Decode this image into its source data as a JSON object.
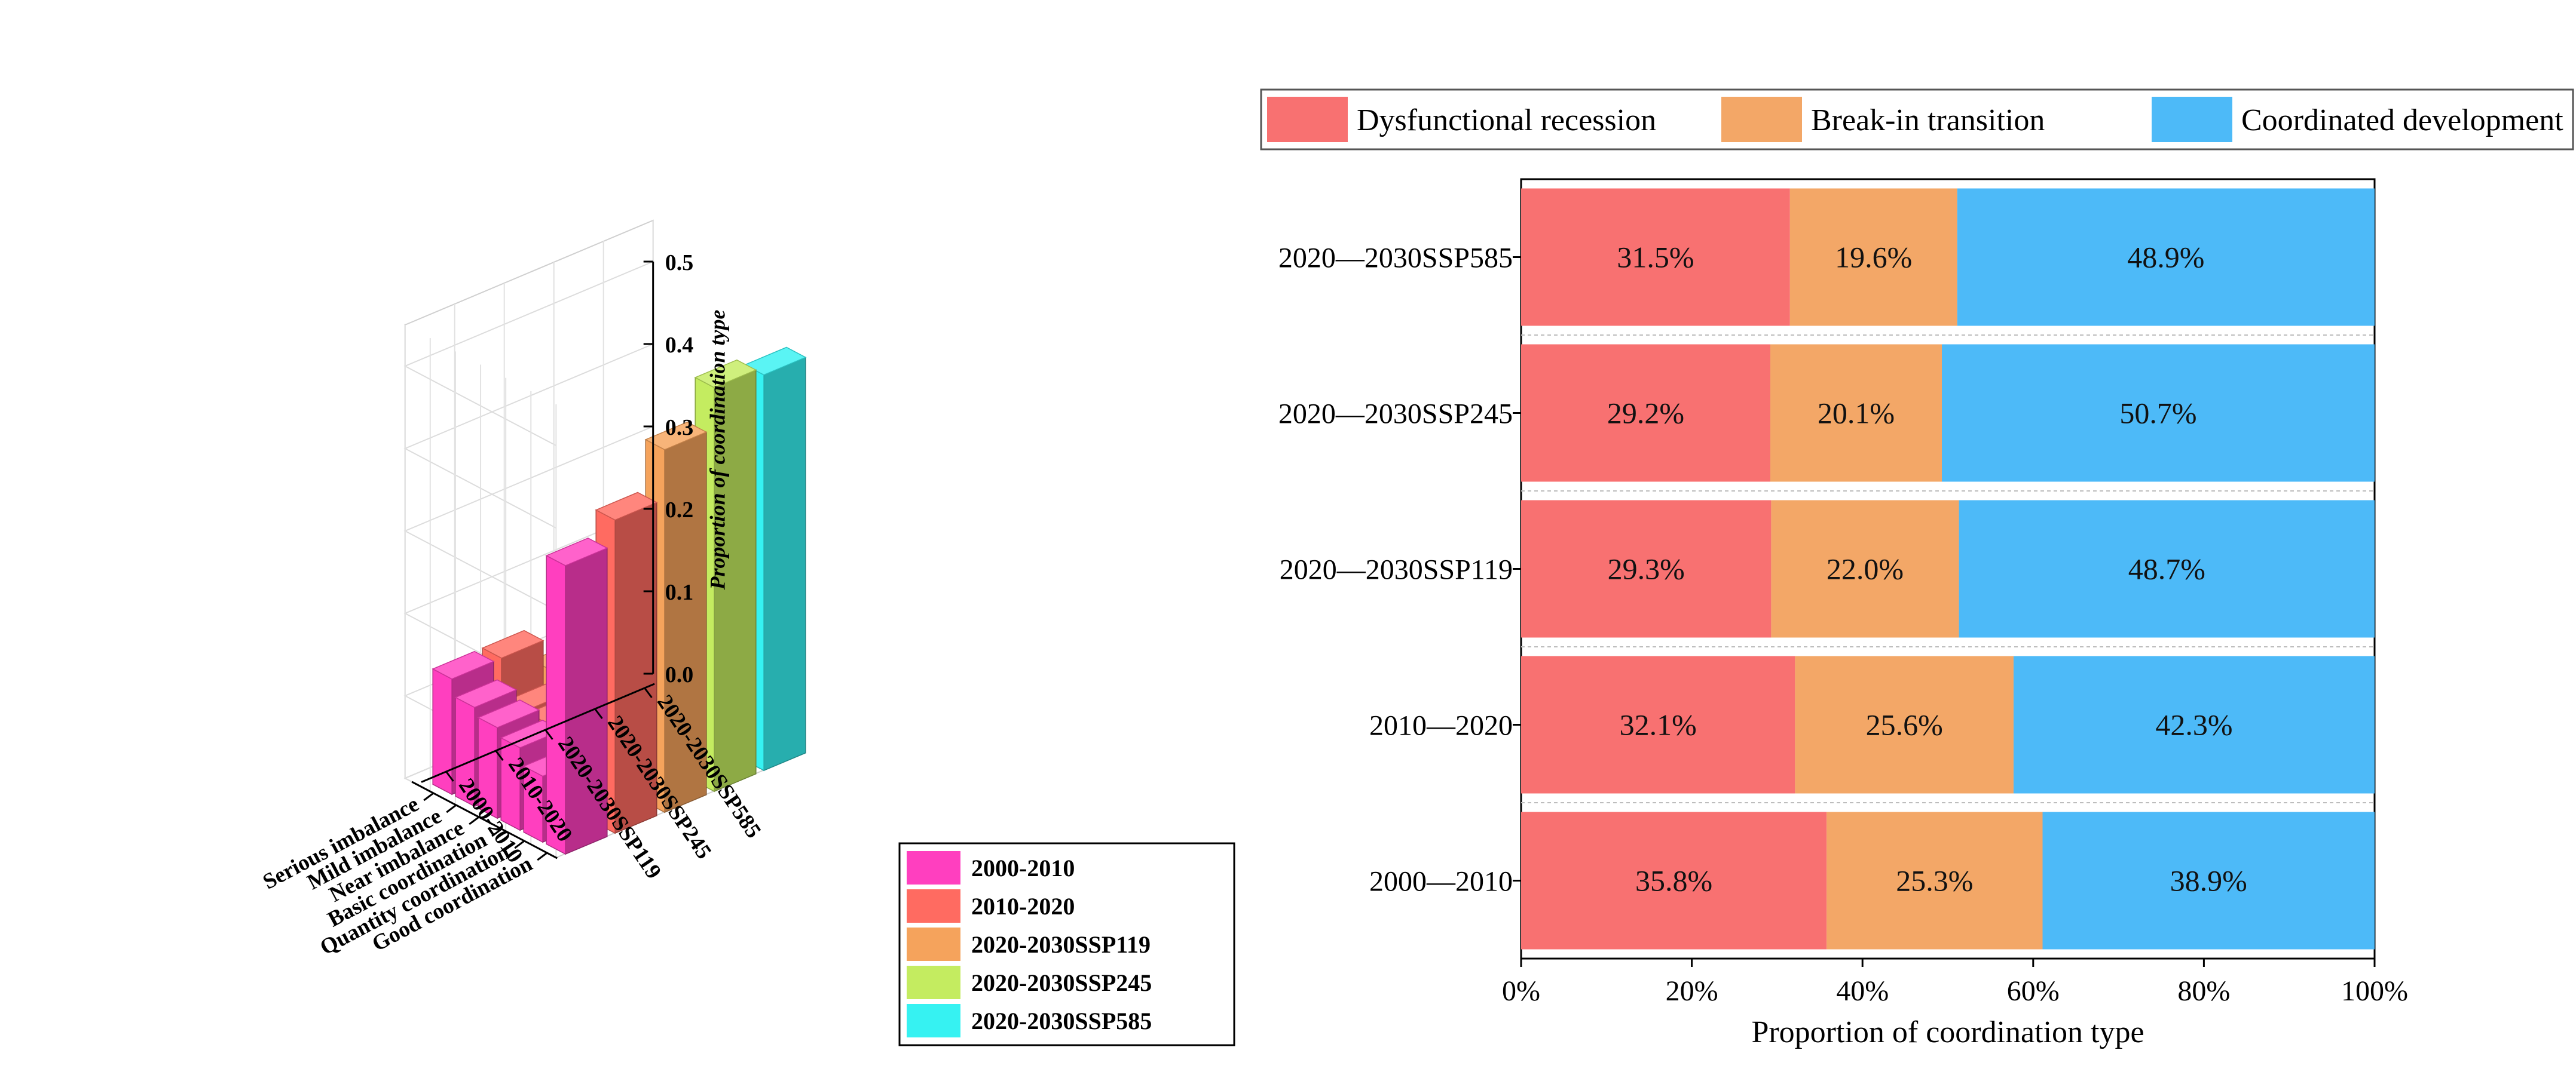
{
  "chart_data": [
    {
      "type": "bar",
      "subtype": "3d-bar",
      "title": "",
      "zlabel": "Proportion of coordination type",
      "zlim": [
        0,
        0.5
      ],
      "zticks": [
        "0.0",
        "0.1",
        "0.2",
        "0.3",
        "0.4",
        "0.5"
      ],
      "categories": [
        "Good coordination",
        "Quantity coordination",
        "Basic coordination",
        "Near imbalance",
        "Mild imbalance",
        "Serious imbalance"
      ],
      "periods": [
        "2000-2010",
        "2010-2020",
        "2020-2030SSP119",
        "2020-2030SSP245",
        "2020-2030SSP585"
      ],
      "series": [
        {
          "name": "2000-2010",
          "color": "#ff3fbf",
          "values": [
            0.35,
            0.08,
            0.1,
            0.11,
            0.12,
            0.14
          ]
        },
        {
          "name": "2010-2020",
          "color": "#ff6b61",
          "values": [
            0.38,
            0.08,
            0.09,
            0.09,
            0.09,
            0.14
          ]
        },
        {
          "name": "2020-2030SSP119",
          "color": "#f5a35c",
          "values": [
            0.44,
            0.04,
            0.04,
            0.06,
            0.07,
            0.1
          ]
        },
        {
          "name": "2020-2030SSP245",
          "color": "#c4ec60",
          "values": [
            0.49,
            0.02,
            0.03,
            0.05,
            0.07,
            0.1
          ]
        },
        {
          "name": "2020-2030SSP585",
          "color": "#36f2f2",
          "values": [
            0.48,
            0.05,
            0.05,
            0.04,
            0.11,
            0.1
          ]
        }
      ],
      "legend": {
        "position": "bottom-right",
        "items": [
          {
            "label": "2000-2010",
            "color": "#ff3fbf"
          },
          {
            "label": "2010-2020",
            "color": "#ff6b61"
          },
          {
            "label": "2020-2030SSP119",
            "color": "#f5a35c"
          },
          {
            "label": "2020-2030SSP245",
            "color": "#c4ec60"
          },
          {
            "label": "2020-2030SSP585",
            "color": "#36f2f2"
          }
        ]
      }
    },
    {
      "type": "bar",
      "subtype": "horizontal-stacked-100",
      "title": "",
      "xlabel": "Proportion of coordination type",
      "xlim": [
        0,
        100
      ],
      "xticks": [
        "0%",
        "20%",
        "40%",
        "60%",
        "80%",
        "100%"
      ],
      "categories": [
        "2020—2030SSP585",
        "2020—2030SSP245",
        "2020—2030SSP119",
        "2010—2020",
        "2000—2010"
      ],
      "series": [
        {
          "name": "Dysfunctional recession",
          "color": "#f87171",
          "values": [
            31.5,
            29.2,
            29.3,
            32.1,
            35.8
          ],
          "labels": [
            "31.5%",
            "29.2%",
            "29.3%",
            "32.1%",
            "35.8%"
          ]
        },
        {
          "name": "Break-in transition",
          "color": "#f3a767",
          "values": [
            19.6,
            20.1,
            22.0,
            25.6,
            25.3
          ],
          "labels": [
            "19.6%",
            "20.1%",
            "22.0%",
            "25.6%",
            "25.3%"
          ]
        },
        {
          "name": "Coordinated development",
          "color": "#4dbaf8",
          "values": [
            48.9,
            50.7,
            48.7,
            42.3,
            38.9
          ],
          "labels": [
            "48.9%",
            "50.7%",
            "48.7%",
            "42.3%",
            "38.9%"
          ]
        }
      ],
      "legend": {
        "position": "top",
        "items": [
          {
            "label": "Dysfunctional recession",
            "color": "#f87171"
          },
          {
            "label": "Break-in transition",
            "color": "#f3a767"
          },
          {
            "label": "Coordinated development",
            "color": "#4dbaf8"
          }
        ]
      }
    }
  ]
}
